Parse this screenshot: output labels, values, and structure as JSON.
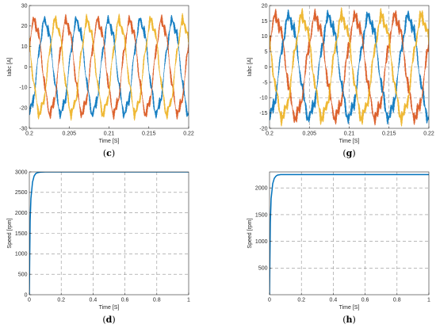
{
  "colors": {
    "phase_a": "#0072BD",
    "phase_b": "#D95319",
    "phase_c": "#EDB120",
    "speed": "#0072BD",
    "grid": "#909090",
    "axis": "#262626"
  },
  "chart_data": [
    {
      "panel": "c",
      "panel_label": "c",
      "type": "line",
      "xlabel": "Time [S]",
      "ylabel": "Iabc [A]",
      "xlim": [
        0.2,
        0.22
      ],
      "ylim": [
        -30,
        30
      ],
      "xticks": [
        "0.2",
        "0.205",
        "0.21",
        "0.215",
        "0.22"
      ],
      "xtick_values": [
        0.2,
        0.205,
        0.21,
        0.215,
        0.22
      ],
      "yticks": [
        "30",
        "20",
        "10",
        "0",
        "-10",
        "-20",
        "-30"
      ],
      "ytick_values": [
        30,
        20,
        10,
        0,
        -10,
        -20,
        -30
      ],
      "grid": false,
      "waveform": {
        "frequency_hz": 250,
        "amplitude": 22,
        "ripple": 3
      },
      "series": [
        {
          "color": "phase_a",
          "phase_deg": 270
        },
        {
          "color": "phase_b",
          "phase_deg": 30
        },
        {
          "color": "phase_c",
          "phase_deg": 150
        }
      ]
    },
    {
      "panel": "g",
      "panel_label": "g",
      "type": "line",
      "xlabel": "Time [S]",
      "ylabel": "Iabc [A]",
      "xlim": [
        0.2,
        0.22
      ],
      "ylim": [
        -20,
        20
      ],
      "xticks": [
        "0.2",
        "0.205",
        "0.21",
        "0.215",
        "0.22"
      ],
      "xtick_values": [
        0.2,
        0.205,
        0.21,
        0.215,
        0.22
      ],
      "yticks": [
        "20",
        "15",
        "10",
        "5",
        "0",
        "-5",
        "-10",
        "-15",
        "-20"
      ],
      "ytick_values": [
        20,
        15,
        10,
        5,
        0,
        -5,
        -10,
        -15,
        -20
      ],
      "grid": true,
      "waveform": {
        "frequency_hz": 200,
        "amplitude": 16,
        "ripple": 2.5
      },
      "series": [
        {
          "color": "phase_a",
          "phase_deg": 270
        },
        {
          "color": "phase_b",
          "phase_deg": 30
        },
        {
          "color": "phase_c",
          "phase_deg": 150
        }
      ]
    },
    {
      "panel": "d",
      "panel_label": "d",
      "type": "line",
      "xlabel": "Time [S]",
      "ylabel": "Speed [rpm]",
      "xlim": [
        0,
        1
      ],
      "ylim": [
        0,
        3000
      ],
      "xticks": [
        "0",
        "0.2",
        "0.4",
        "0.6",
        "0.8",
        "1"
      ],
      "xtick_values": [
        0,
        0.2,
        0.4,
        0.6,
        0.8,
        1
      ],
      "yticks": [
        "3000",
        "2500",
        "2000",
        "1500",
        "1000",
        "500",
        "0"
      ],
      "ytick_values": [
        3000,
        2500,
        2000,
        1500,
        1000,
        500,
        0
      ],
      "grid": true,
      "series": [
        {
          "color": "speed",
          "x": [
            0,
            0.002,
            0.005,
            0.01,
            0.02,
            0.03,
            0.04,
            0.05,
            0.07,
            0.1,
            0.2,
            1
          ],
          "y": [
            0,
            800,
            1800,
            2350,
            2750,
            2900,
            2960,
            2980,
            2995,
            3000,
            3000,
            3000
          ]
        }
      ]
    },
    {
      "panel": "h",
      "panel_label": "h",
      "type": "line",
      "xlabel": "Time [S]",
      "ylabel": "Speed [rpm]",
      "xlim": [
        0,
        1
      ],
      "ylim": [
        0,
        2300
      ],
      "xticks": [
        "0",
        "0.2",
        "0.4",
        "0.6",
        "0.8",
        "1"
      ],
      "xtick_values": [
        0,
        0.2,
        0.4,
        0.6,
        0.8,
        1
      ],
      "yticks": [
        "2000",
        "1500",
        "1000",
        "500"
      ],
      "ytick_values": [
        2000,
        1500,
        1000,
        500
      ],
      "grid": true,
      "series": [
        {
          "color": "speed",
          "x": [
            0,
            0.002,
            0.005,
            0.01,
            0.02,
            0.03,
            0.04,
            0.05,
            0.07,
            0.1,
            0.2,
            1
          ],
          "y": [
            0,
            600,
            1350,
            1800,
            2080,
            2180,
            2220,
            2240,
            2250,
            2250,
            2250,
            2250
          ]
        }
      ]
    }
  ]
}
